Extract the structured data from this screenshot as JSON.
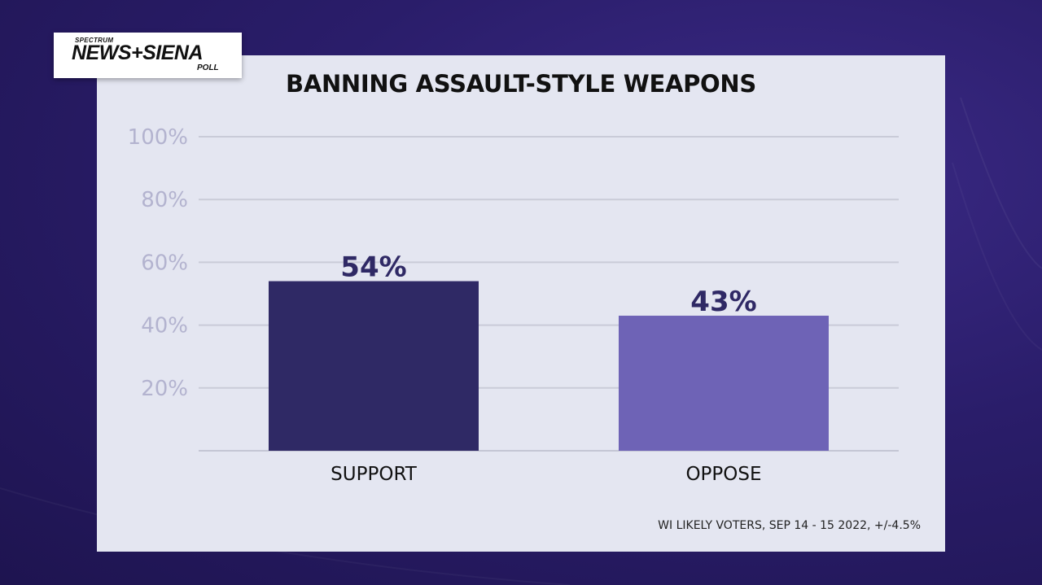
{
  "logo": {
    "top_text": "SPECTRUM",
    "main_text": "NEWS+SIENA",
    "sub_text": "POLL"
  },
  "chart_data": {
    "type": "bar",
    "title": "BANNING ASSAULT-STYLE WEAPONS",
    "categories": [
      "SUPPORT",
      "OPPOSE"
    ],
    "values": [
      54,
      43
    ],
    "value_labels": [
      "54%",
      "43%"
    ],
    "bar_colors": [
      "#2f2965",
      "#6e63b6"
    ],
    "yticks": [
      "20%",
      "40%",
      "60%",
      "80%",
      "100%"
    ],
    "ytick_values": [
      20,
      40,
      60,
      80,
      100
    ],
    "ylim": [
      0,
      100
    ],
    "grid": true,
    "xlabel": "",
    "ylabel": ""
  },
  "footnote": "WI LIKELY VOTERS, SEP 14 - 15 2022, +/-4.5%"
}
